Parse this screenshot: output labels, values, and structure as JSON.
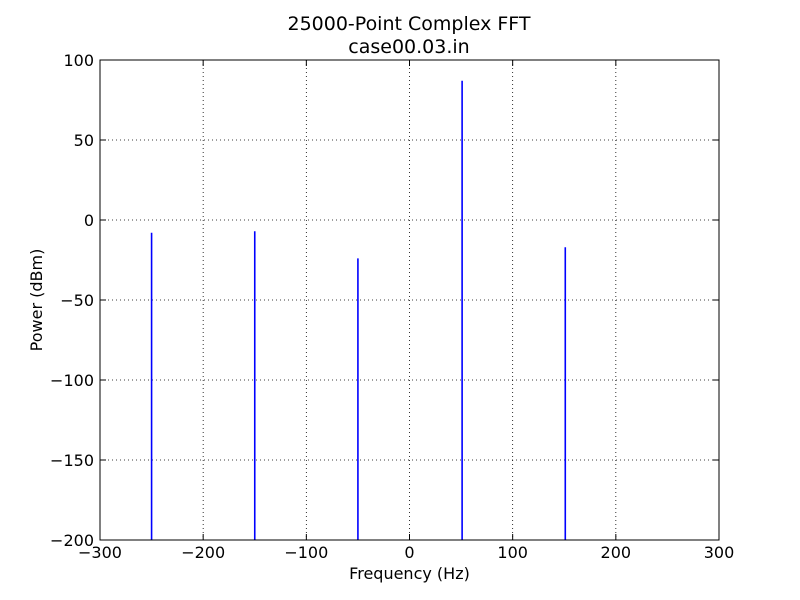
{
  "chart_data": {
    "type": "line",
    "title": "25000-Point Complex FFT",
    "subtitle": "case00.03.in",
    "xlabel": "Frequency (Hz)",
    "ylabel": "Power (dBm)",
    "xlim": [
      -300,
      300
    ],
    "ylim": [
      -200,
      100
    ],
    "xticks": [
      -300,
      -200,
      -100,
      0,
      100,
      200,
      300
    ],
    "yticks": [
      -200,
      -150,
      -100,
      -50,
      0,
      50,
      100
    ],
    "xtick_labels": [
      "−300",
      "−200",
      "−100",
      "0",
      "100",
      "200",
      "300"
    ],
    "ytick_labels": [
      "−200",
      "−150",
      "−100",
      "−50",
      "0",
      "50",
      "100"
    ],
    "grid": true,
    "series_color": "#0000ff",
    "peaks": [
      {
        "x": -250,
        "y": -8
      },
      {
        "x": -150,
        "y": -7
      },
      {
        "x": -50,
        "y": -24
      },
      {
        "x": 51,
        "y": 87
      },
      {
        "x": 151,
        "y": -17
      }
    ]
  }
}
